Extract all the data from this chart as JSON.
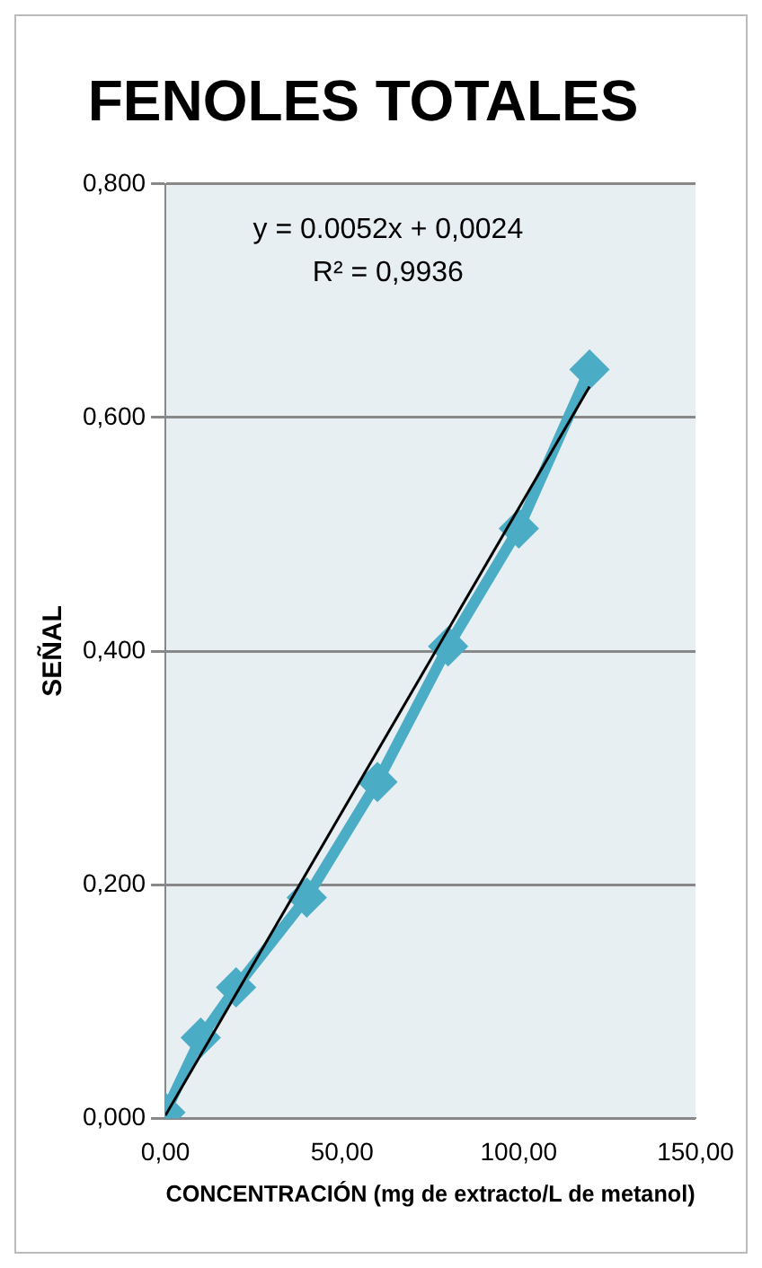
{
  "chart_data": {
    "type": "line",
    "title": "FENOLES TOTALES",
    "xlabel": "CONCENTRACIÓN (mg de extracto/L de metanol)",
    "ylabel": "SEÑAL",
    "series": [
      {
        "color": "#4bacc6",
        "x": [
          0,
          10,
          20,
          40,
          60,
          80,
          100,
          120
        ],
        "values": [
          0.005,
          0.069,
          0.112,
          0.189,
          0.288,
          0.404,
          0.505,
          0.641
        ],
        "marker": "diamond"
      },
      {
        "type": "line",
        "color": "#000000",
        "x": [
          0,
          120
        ],
        "values": [
          0.0024,
          0.6264
        ],
        "marker": "none"
      }
    ],
    "xlim": [
      0,
      150
    ],
    "xticks": [
      {
        "value": 0,
        "label": "0,00"
      },
      {
        "value": 50,
        "label": "50,00"
      },
      {
        "value": 100,
        "label": "100,00"
      },
      {
        "value": 150,
        "label": "150,00"
      }
    ],
    "ylim": [
      0,
      0.8
    ],
    "yticks": [
      {
        "value": 0,
        "label": "0,000"
      },
      {
        "value": 0.2,
        "label": "0,200"
      },
      {
        "value": 0.4,
        "label": "0,400"
      },
      {
        "value": 0.6,
        "label": "0,600"
      },
      {
        "value": 0.8,
        "label": "0,800"
      }
    ],
    "annotations": [
      "y = 0.0052x + 0,0024",
      "R² = 0,9936"
    ],
    "grid": "y",
    "legend": false
  }
}
